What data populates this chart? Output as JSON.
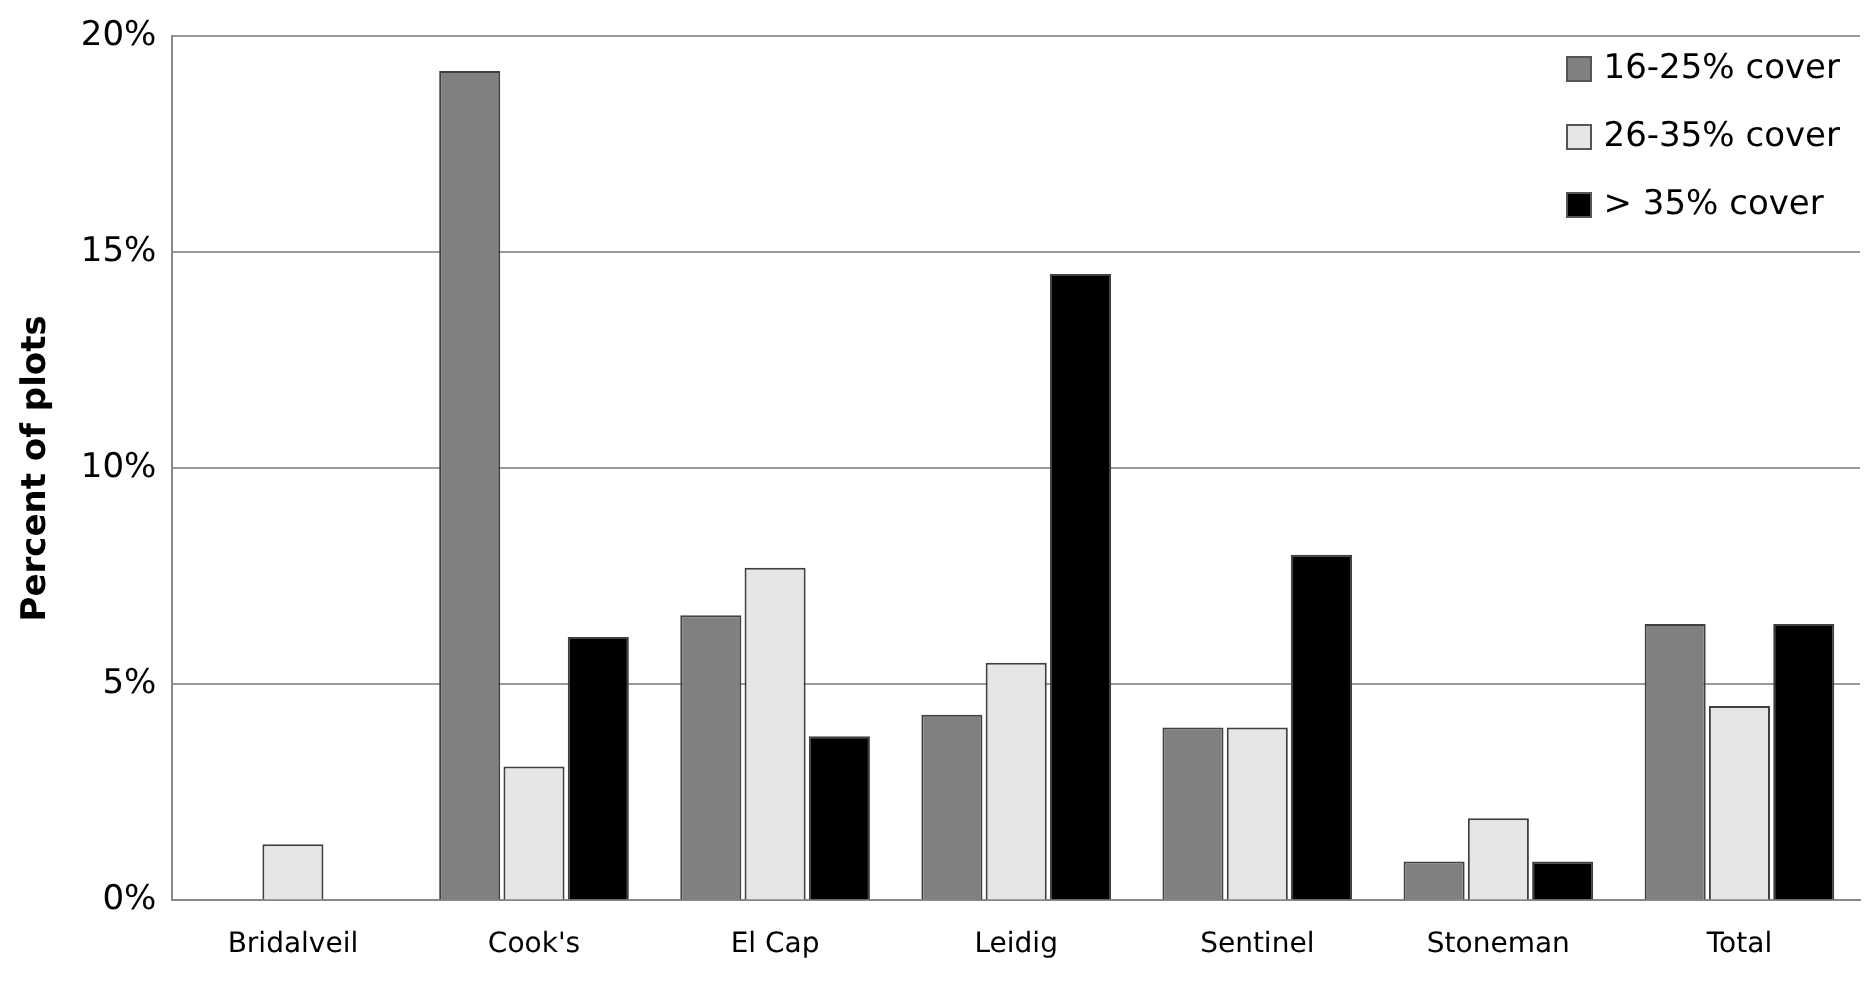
{
  "chart_data": {
    "type": "bar",
    "ylabel": "Percent of plots",
    "categories": [
      "Bridalveil",
      "Cook's",
      "El Cap",
      "Leidig",
      "Sentinel",
      "Stoneman",
      "Total"
    ],
    "series": [
      {
        "name": "16-25% cover",
        "color": "#808080",
        "values": [
          0,
          19.2,
          6.6,
          4.3,
          4.0,
          0.9,
          6.4
        ]
      },
      {
        "name": "26-35% cover",
        "color": "#e6e6e6",
        "values": [
          1.3,
          3.1,
          7.7,
          5.5,
          4.0,
          1.9,
          4.5
        ]
      },
      {
        "name": "> 35% cover",
        "color": "#000000",
        "values": [
          0,
          6.1,
          3.8,
          14.5,
          8.0,
          0.9,
          6.4
        ]
      }
    ],
    "ylim": [
      0,
      20
    ],
    "yticks": [
      {
        "value": 0,
        "label": "0%"
      },
      {
        "value": 5,
        "label": "5%"
      },
      {
        "value": 10,
        "label": "10%"
      },
      {
        "value": 15,
        "label": "15%"
      },
      {
        "value": 20,
        "label": "20%"
      }
    ],
    "grid": "y",
    "legend": "top right"
  }
}
